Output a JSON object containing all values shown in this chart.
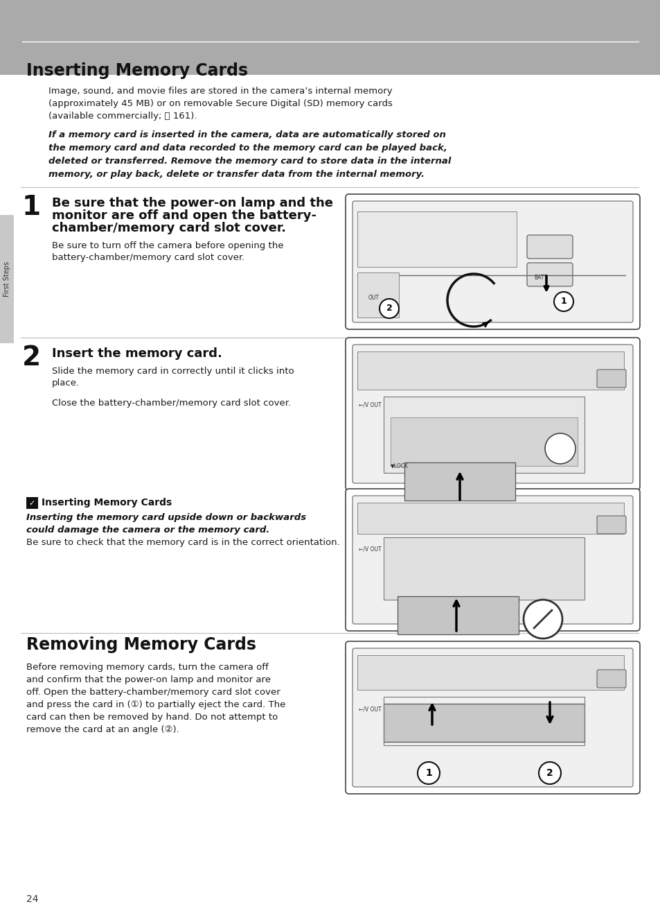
{
  "bg_color": "#ffffff",
  "header_bg": "#aaaaaa",
  "header_text": "Inserting Memory Cards",
  "page_number": "24",
  "sidebar_text": "First Steps",
  "intro_text_1": "Image, sound, and movie files are stored in the camera’s internal memory",
  "intro_text_2": "(approximately 45 MB) or on removable Secure Digital (SD) memory cards",
  "intro_text_3": "(available commercially; ⧉ 161).",
  "bold_line1": "If a memory card is inserted in the camera, data are automatically stored on",
  "bold_line2": "the memory card and data recorded to the memory card can be played back,",
  "bold_line3": "deleted or transferred. Remove the memory card to store data in the internal",
  "bold_line4": "memory, or play back, delete or transfer data from the internal memory.",
  "step1_heading_1": "Be sure that the power-on lamp and the",
  "step1_heading_2": "monitor are off and open the battery-",
  "step1_heading_3": "chamber/memory card slot cover.",
  "step1_body_1": "Be sure to turn off the camera before opening the",
  "step1_body_2": "battery-chamber/memory card slot cover.",
  "step2_heading": "Insert the memory card.",
  "step2_body_1": "Slide the memory card in correctly until it clicks into",
  "step2_body_2": "place.",
  "step2_body_3": "Close the battery-chamber/memory card slot cover.",
  "note_heading": "Inserting Memory Cards",
  "note_bold_1": "Inserting the memory card upside down or backwards",
  "note_bold_2": "could damage the camera or the memory card.",
  "note_normal": "Be sure to check that the memory card is in the correct orientation.",
  "removing_heading": "Removing Memory Cards",
  "rem_body_1": "Before removing memory cards, turn the camera off",
  "rem_body_2": "and confirm that the power-on lamp and monitor are",
  "rem_body_3": "off. Open the battery-chamber/memory card slot cover",
  "rem_body_4": "and press the card in (①) to partially eject the card. The",
  "rem_body_5": "card can then be removed by hand. Do not attempt to",
  "rem_body_6": "remove the card at an angle (②).",
  "text_color": "#1a1a1a",
  "gray_text": "#444444",
  "line_color": "#bbbbbb"
}
